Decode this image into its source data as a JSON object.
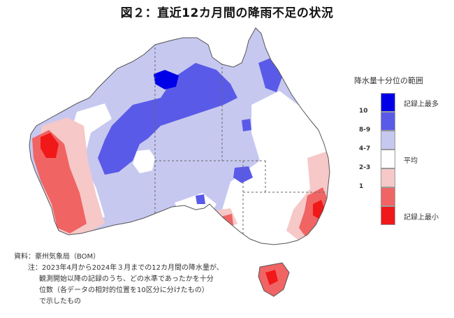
{
  "title": "図２：直近12カ月間の降雨不足の状況",
  "legend": {
    "title": "降水量十分位の範囲",
    "classes": [
      {
        "tick": "",
        "side": "記録上最多",
        "color": "#0000e8"
      },
      {
        "tick": "10",
        "side": "",
        "color": "#5a5ae8"
      },
      {
        "tick": "8-9",
        "side": "",
        "color": "#c6c8f0"
      },
      {
        "tick": "4-7",
        "side": "平均",
        "color": "#ffffff"
      },
      {
        "tick": "2-3",
        "side": "",
        "color": "#f6c8c8"
      },
      {
        "tick": "1",
        "side": "",
        "color": "#f06464"
      },
      {
        "tick": "",
        "side": "記録上最小",
        "color": "#f01818"
      }
    ]
  },
  "notes": {
    "source": "資料：豪州気象局（BOM）",
    "note_line1": "注：2023年4月から2024年３月までの12カ月間の降水量が、",
    "note_line2": "観測開始以降の記録のうち、どの水準であったかを十分",
    "note_line3": "位数（各データの相対的位置を10区分に分けたもの）",
    "note_line4": "で示したもの"
  }
}
